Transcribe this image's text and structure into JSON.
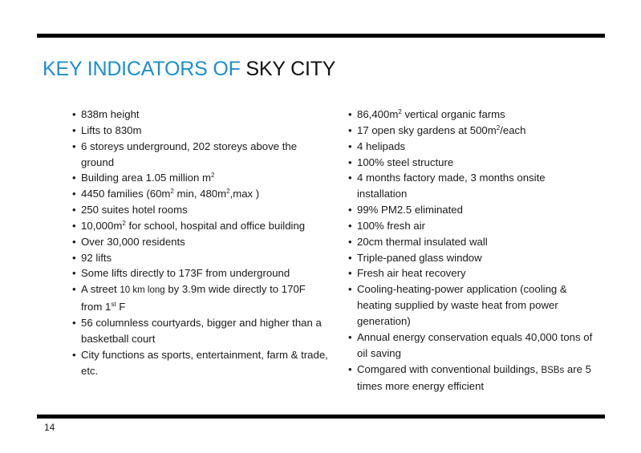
{
  "title": {
    "part1": "KEY INDICATORS OF ",
    "part2": "SKY CITY"
  },
  "colors": {
    "title_accent": "#1b8fd0",
    "rule": "#000000"
  },
  "left_items": [
    [
      {
        "t": "838m height"
      }
    ],
    [
      {
        "t": "Lifts to 830m"
      }
    ],
    [
      {
        "t": "6 storeys underground, 202 storeys above the ground"
      }
    ],
    [
      {
        "t": "Building area 1.05 million m"
      },
      {
        "sup": "2"
      }
    ],
    [
      {
        "t": "4450 families  (60m"
      },
      {
        "sup": "2"
      },
      {
        "t": " min, 480m"
      },
      {
        "sup": "2"
      },
      {
        "t": ",max )"
      }
    ],
    [
      {
        "t": "250 suites hotel rooms"
      }
    ],
    [
      {
        "t": "10,000m"
      },
      {
        "sup": "2"
      },
      {
        "t": " for school, hospital and office building"
      }
    ],
    [
      {
        "t": "Over 30,000 residents"
      }
    ],
    [
      {
        "t": "92 lifts"
      }
    ],
    [
      {
        "t": "Some lifts directly to 173F from underground"
      }
    ],
    [
      {
        "t": "A street "
      },
      {
        "small": "10 km long"
      },
      {
        "t": " by 3.9m wide directly to 170F from 1"
      },
      {
        "sup": "st"
      },
      {
        "t": " F"
      }
    ],
    [
      {
        "t": "56 columnless courtyards, bigger and higher than a basketball court"
      }
    ],
    [
      {
        "t": "City functions as sports, entertainment, farm & trade, etc."
      }
    ]
  ],
  "right_items": [
    [
      {
        "t": "86,400m"
      },
      {
        "sup": "2"
      },
      {
        "t": " vertical organic farms"
      }
    ],
    [
      {
        "t": "17 open sky gardens at 500m"
      },
      {
        "sup": "2"
      },
      {
        "t": "/each"
      }
    ],
    [
      {
        "t": "4 helipads"
      }
    ],
    [
      {
        "t": "100% steel structure"
      }
    ],
    [
      {
        "t": "4 months factory made, 3 months onsite installation"
      }
    ],
    [
      {
        "t": "99%  PM2.5 eliminated"
      }
    ],
    [
      {
        "t": "100% fresh air"
      }
    ],
    [
      {
        "t": "20cm thermal insulated wall"
      }
    ],
    [
      {
        "t": "Triple-paned glass window"
      }
    ],
    [
      {
        "t": "Fresh air heat recovery"
      }
    ],
    [
      {
        "t": "Cooling-heating-power application (cooling & heating supplied by waste heat from power generation)"
      }
    ],
    [
      {
        "t": "Annual energy conservation equals 40,000 tons of oil saving"
      }
    ],
    [
      {
        "t": "Comgared with conventional buildings, "
      },
      {
        "small": "BSBs"
      },
      {
        "t": " are 5 times more energy efficient"
      }
    ]
  ],
  "page_number": "14"
}
